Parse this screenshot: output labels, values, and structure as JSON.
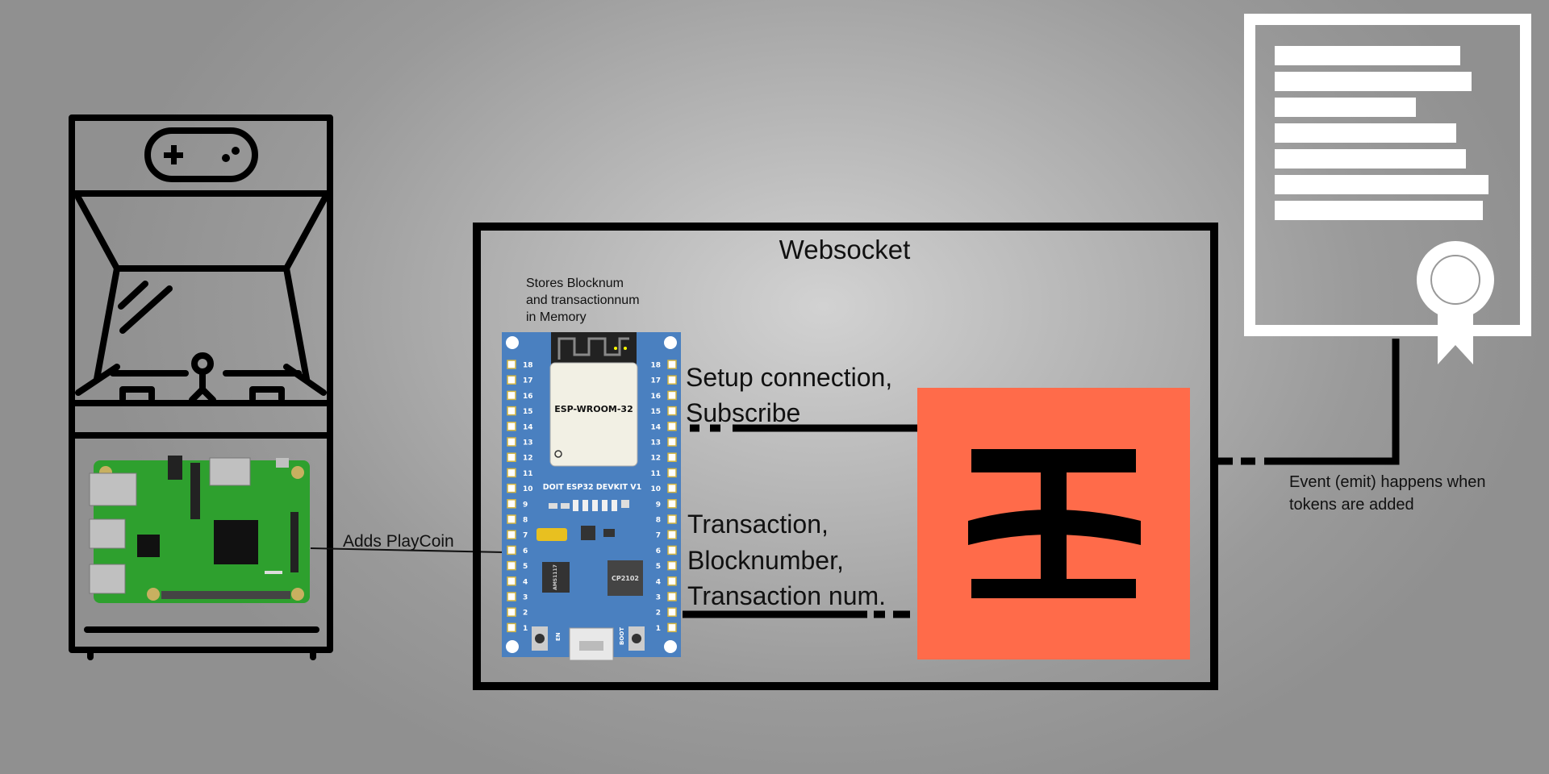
{
  "websocket_title": "Websocket",
  "esp32": {
    "memory_note": [
      "Stores Blocknum",
      "and transactionnum",
      "in Memory"
    ],
    "module_label": "ESP-WROOM-32",
    "board_label": "DOIT ESP32 DEVKIT V1",
    "usb_chip_label": "CP2102",
    "regulator_label": "AMS1117",
    "en_label": "EN",
    "boot_label": "BOOT",
    "pins": [
      "18",
      "17",
      "16",
      "15",
      "14",
      "13",
      "12",
      "11",
      "10",
      "9",
      "8",
      "7",
      "6",
      "5",
      "4",
      "3",
      "2",
      "1"
    ]
  },
  "edges": {
    "setup": [
      "Setup connection,",
      "Subscribe"
    ],
    "transaction": [
      "Transaction,",
      "Blocknumber,",
      "Transaction num."
    ],
    "playcoin": "Adds PlayCoin",
    "event": [
      "Event (emit) happens when",
      "tokens are added"
    ]
  },
  "colors": {
    "esp_board": "#4a80c0",
    "node_bg": "#ff6b4a",
    "pi_board": "#2ea02e",
    "line": "#000000",
    "certificate": "#ffffff"
  },
  "icons": {
    "arcade": "arcade-cabinet-icon",
    "gamepad": "gamepad-icon",
    "pi": "raspberry-pi-board-icon",
    "node": "blockchain-node-logo",
    "contract": "certificate-icon"
  }
}
